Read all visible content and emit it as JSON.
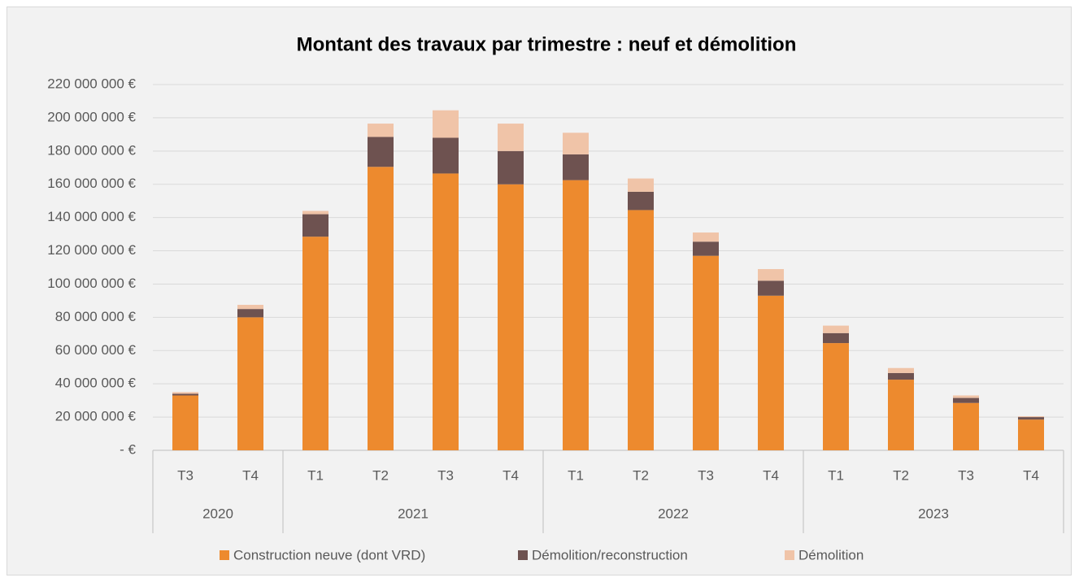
{
  "chart_data": {
    "type": "stacked_bar",
    "title": "Montant des travaux par trimestre : neuf et démolition",
    "groups": [
      {
        "label": "2020",
        "categories": [
          "T3",
          "T4"
        ]
      },
      {
        "label": "2021",
        "categories": [
          "T1",
          "T2",
          "T3",
          "T4"
        ]
      },
      {
        "label": "2022",
        "categories": [
          "T1",
          "T2",
          "T3",
          "T4"
        ]
      },
      {
        "label": "2023",
        "categories": [
          "T1",
          "T2",
          "T3",
          "T4"
        ]
      }
    ],
    "series": [
      {
        "name": "Construction neuve (dont VRD)",
        "color": "#ed8a2e",
        "values": [
          33000000,
          80000000,
          128500000,
          170500000,
          166500000,
          160000000,
          162500000,
          144500000,
          117000000,
          93000000,
          64500000,
          42500000,
          28500000,
          18500000
        ]
      },
      {
        "name": "Démolition/reconstruction",
        "color": "#6e5250",
        "values": [
          1000000,
          5000000,
          13500000,
          18000000,
          21500000,
          20000000,
          15500000,
          11000000,
          8500000,
          9000000,
          6000000,
          4000000,
          3000000,
          1500000
        ]
      },
      {
        "name": "Démolition",
        "color": "#f0c4a8",
        "values": [
          1000000,
          2500000,
          2000000,
          8000000,
          16500000,
          16500000,
          13000000,
          8000000,
          5500000,
          7000000,
          4500000,
          3000000,
          1500000,
          500000
        ]
      }
    ],
    "ylim": [
      0,
      220000000
    ],
    "yticks": [
      {
        "value": 0,
        "label": "-  €"
      },
      {
        "value": 20000000,
        "label": "20 000 000 €"
      },
      {
        "value": 40000000,
        "label": "40 000 000 €"
      },
      {
        "value": 60000000,
        "label": "60 000 000 €"
      },
      {
        "value": 80000000,
        "label": "80 000 000 €"
      },
      {
        "value": 100000000,
        "label": "100 000 000 €"
      },
      {
        "value": 120000000,
        "label": "120 000 000 €"
      },
      {
        "value": 140000000,
        "label": "140 000 000 €"
      },
      {
        "value": 160000000,
        "label": "160 000 000 €"
      },
      {
        "value": 180000000,
        "label": "180 000 000 €"
      },
      {
        "value": 200000000,
        "label": "200 000 000 €"
      },
      {
        "value": 220000000,
        "label": "220 000 000 €"
      }
    ],
    "grid": true,
    "legend": "bottom"
  }
}
